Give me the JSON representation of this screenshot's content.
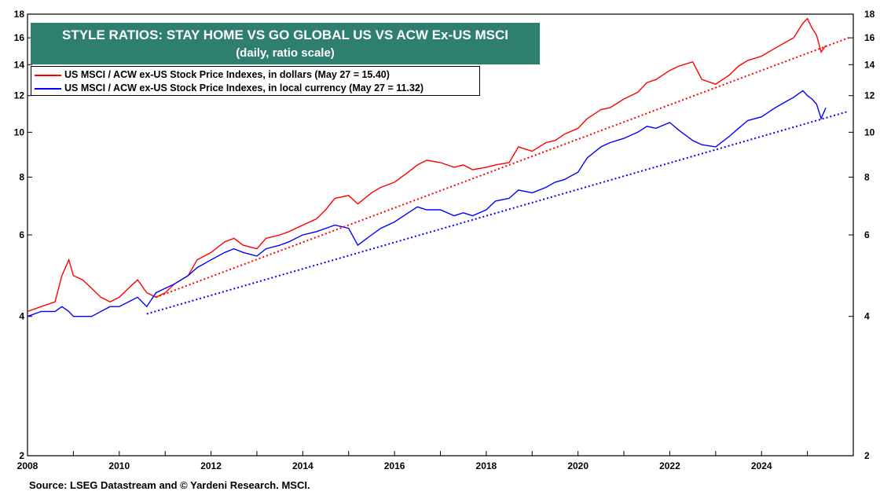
{
  "title": "STYLE RATIOS: STAY HOME VS GO GLOBAL US VS ACW Ex-US MSCI",
  "subtitle": "(daily, ratio scale)",
  "source": "Source: LSEG Datastream and © Yardeni Research. MSCI.",
  "chart_data": {
    "type": "line",
    "title": "STYLE RATIOS: STAY HOME VS GO GLOBAL US VS ACW Ex-US MSCI",
    "subtitle": "(daily, ratio scale)",
    "y_scale": "log",
    "ylim": [
      2,
      18
    ],
    "xlim": [
      2008.0,
      2026.0
    ],
    "y_ticks": [
      2,
      4,
      6,
      8,
      10,
      12,
      14,
      16,
      18
    ],
    "x_ticks": [
      2008,
      2010,
      2012,
      2014,
      2016,
      2018,
      2020,
      2022,
      2024
    ],
    "grid": false,
    "legend_position": "top-left",
    "series": [
      {
        "name": "US MSCI / ACW ex-US Stock Price Indexes, in dollars (May 27 = 15.40)",
        "color": "#ff0000",
        "x": [
          2008.0,
          2008.3,
          2008.6,
          2008.75,
          2008.9,
          2009.0,
          2009.2,
          2009.4,
          2009.6,
          2009.8,
          2010.0,
          2010.2,
          2010.4,
          2010.6,
          2010.8,
          2011.0,
          2011.2,
          2011.5,
          2011.7,
          2012.0,
          2012.3,
          2012.5,
          2012.7,
          2013.0,
          2013.2,
          2013.5,
          2013.7,
          2014.0,
          2014.3,
          2014.5,
          2014.7,
          2015.0,
          2015.2,
          2015.5,
          2015.7,
          2016.0,
          2016.3,
          2016.5,
          2016.7,
          2017.0,
          2017.3,
          2017.5,
          2017.7,
          2018.0,
          2018.2,
          2018.5,
          2018.7,
          2019.0,
          2019.3,
          2019.5,
          2019.7,
          2020.0,
          2020.2,
          2020.5,
          2020.7,
          2021.0,
          2021.3,
          2021.5,
          2021.7,
          2022.0,
          2022.2,
          2022.5,
          2022.7,
          2023.0,
          2023.3,
          2023.5,
          2023.7,
          2024.0,
          2024.3,
          2024.5,
          2024.7,
          2024.9,
          2025.0,
          2025.1,
          2025.2,
          2025.3,
          2025.4
        ],
        "values": [
          4.1,
          4.2,
          4.3,
          4.9,
          5.3,
          4.9,
          4.8,
          4.6,
          4.4,
          4.3,
          4.4,
          4.6,
          4.8,
          4.5,
          4.4,
          4.5,
          4.7,
          4.9,
          5.3,
          5.5,
          5.8,
          5.9,
          5.7,
          5.6,
          5.9,
          6.0,
          6.1,
          6.3,
          6.5,
          6.8,
          7.2,
          7.3,
          7.0,
          7.4,
          7.6,
          7.8,
          8.2,
          8.5,
          8.7,
          8.6,
          8.4,
          8.5,
          8.3,
          8.4,
          8.5,
          8.6,
          9.3,
          9.1,
          9.5,
          9.6,
          9.9,
          10.2,
          10.7,
          11.2,
          11.3,
          11.8,
          12.2,
          12.8,
          13.0,
          13.6,
          13.9,
          14.2,
          13.0,
          12.7,
          13.3,
          13.9,
          14.3,
          14.6,
          15.2,
          15.6,
          16.0,
          17.2,
          17.6,
          16.8,
          16.2,
          14.9,
          15.4
        ]
      },
      {
        "name": "US MSCI / ACW ex-US Stock Price Indexes, in local currency (May 27 = 11.32)",
        "color": "#0000ff",
        "x": [
          2008.0,
          2008.3,
          2008.6,
          2008.75,
          2008.9,
          2009.0,
          2009.2,
          2009.4,
          2009.6,
          2009.8,
          2010.0,
          2010.2,
          2010.4,
          2010.6,
          2010.8,
          2011.0,
          2011.2,
          2011.5,
          2011.7,
          2012.0,
          2012.3,
          2012.5,
          2012.7,
          2013.0,
          2013.2,
          2013.5,
          2013.7,
          2014.0,
          2014.3,
          2014.5,
          2014.7,
          2015.0,
          2015.2,
          2015.5,
          2015.7,
          2016.0,
          2016.3,
          2016.5,
          2016.7,
          2017.0,
          2017.3,
          2017.5,
          2017.7,
          2018.0,
          2018.2,
          2018.5,
          2018.7,
          2019.0,
          2019.3,
          2019.5,
          2019.7,
          2020.0,
          2020.2,
          2020.5,
          2020.7,
          2021.0,
          2021.3,
          2021.5,
          2021.7,
          2022.0,
          2022.2,
          2022.5,
          2022.7,
          2023.0,
          2023.3,
          2023.5,
          2023.7,
          2024.0,
          2024.3,
          2024.5,
          2024.7,
          2024.9,
          2025.0,
          2025.1,
          2025.2,
          2025.3,
          2025.4
        ],
        "values": [
          4.0,
          4.1,
          4.1,
          4.2,
          4.1,
          4.0,
          4.0,
          4.0,
          4.1,
          4.2,
          4.2,
          4.3,
          4.4,
          4.2,
          4.5,
          4.6,
          4.7,
          4.9,
          5.1,
          5.3,
          5.5,
          5.6,
          5.5,
          5.4,
          5.6,
          5.7,
          5.8,
          6.0,
          6.1,
          6.2,
          6.3,
          6.2,
          5.7,
          6.0,
          6.2,
          6.4,
          6.7,
          6.9,
          6.8,
          6.8,
          6.6,
          6.7,
          6.6,
          6.8,
          7.1,
          7.2,
          7.5,
          7.4,
          7.6,
          7.8,
          7.9,
          8.2,
          8.8,
          9.3,
          9.5,
          9.7,
          10.0,
          10.3,
          10.2,
          10.5,
          10.1,
          9.6,
          9.4,
          9.3,
          9.8,
          10.2,
          10.6,
          10.8,
          11.3,
          11.6,
          11.9,
          12.3,
          12.0,
          11.8,
          11.5,
          10.7,
          11.3
        ]
      },
      {
        "color": "#ff0000",
        "style": "dotted",
        "x": [
          2010.8,
          2025.9
        ],
        "values": [
          4.4,
          16.0
        ]
      },
      {
        "color": "#0000ff",
        "style": "dotted",
        "x": [
          2010.6,
          2025.9
        ],
        "values": [
          4.05,
          11.1
        ]
      }
    ]
  }
}
